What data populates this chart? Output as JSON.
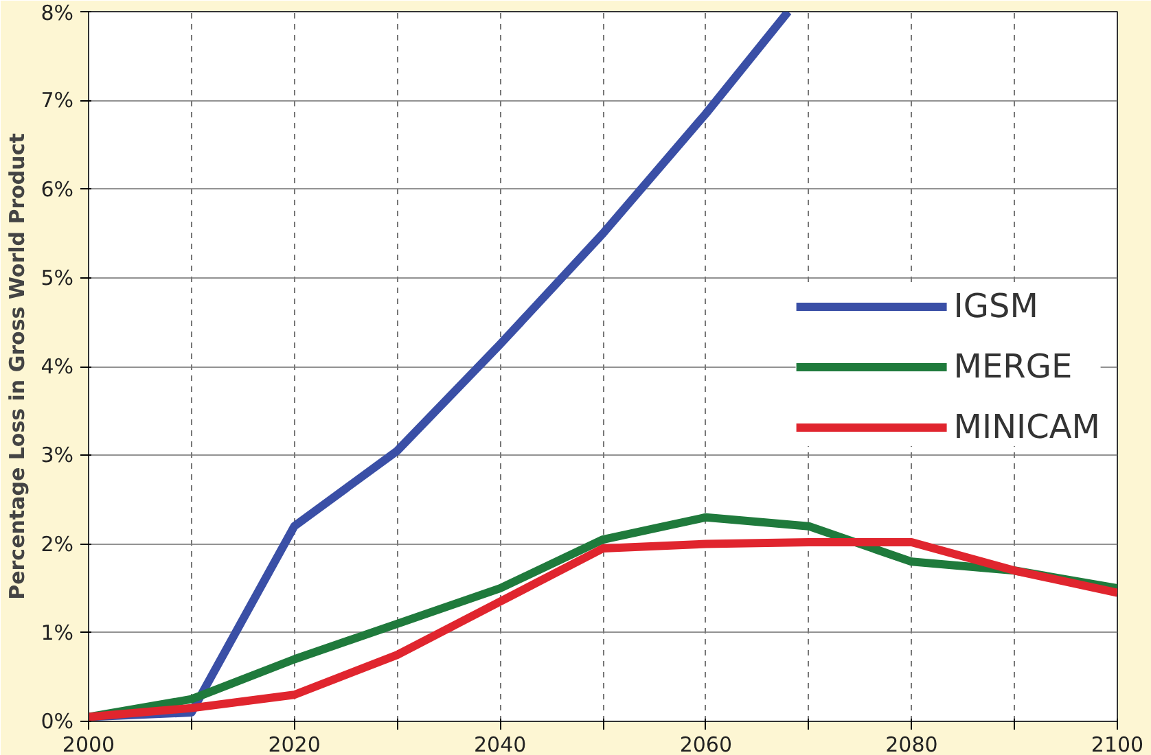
{
  "chart_data": {
    "type": "line",
    "ylabel": "Percentage Loss in Gross World Product",
    "xlim": [
      2000,
      2100
    ],
    "ylim": [
      0,
      8
    ],
    "xticks": [
      2000,
      {
        "value": 2010,
        "label": null
      },
      2020,
      {
        "value": 2030,
        "label": null
      },
      2040,
      {
        "value": 2050,
        "label": null
      },
      2060,
      {
        "value": 2070,
        "label": null
      },
      2080,
      {
        "value": 2090,
        "label": null
      },
      2100
    ],
    "yticks": [
      {
        "value": 0,
        "label": "0%"
      },
      {
        "value": 1,
        "label": "1%"
      },
      {
        "value": 2,
        "label": "2%"
      },
      {
        "value": 3,
        "label": "3%"
      },
      {
        "value": 4,
        "label": "4%"
      },
      {
        "value": 5,
        "label": "5%"
      },
      {
        "value": 6,
        "label": "6%"
      },
      {
        "value": 7,
        "label": "7%"
      },
      {
        "value": 8,
        "label": "8%"
      }
    ],
    "grid": true,
    "legend": "right",
    "series": [
      {
        "name": "IGSM",
        "color": "#3a4fa6",
        "x": [
          2000,
          2010,
          2020,
          2030,
          2040,
          2050,
          2060,
          2068
        ],
        "values": [
          0.05,
          0.1,
          2.2,
          3.05,
          4.25,
          5.5,
          6.85,
          8
        ]
      },
      {
        "name": "MERGE",
        "color": "#1f7a3c",
        "x": [
          2000,
          2010,
          2020,
          2030,
          2040,
          2050,
          2060,
          2070,
          2080,
          2090,
          2100
        ],
        "values": [
          0.05,
          0.25,
          0.7,
          1.1,
          1.5,
          2.05,
          2.3,
          2.2,
          1.8,
          1.7,
          1.5
        ]
      },
      {
        "name": "MINICAM",
        "color": "#e0252e",
        "x": [
          2000,
          2010,
          2020,
          2030,
          2040,
          2050,
          2060,
          2070,
          2080,
          2090,
          2100
        ],
        "values": [
          0.05,
          0.15,
          0.3,
          0.75,
          1.35,
          1.95,
          2.0,
          2.02,
          2.02,
          1.7,
          1.45
        ]
      }
    ]
  }
}
